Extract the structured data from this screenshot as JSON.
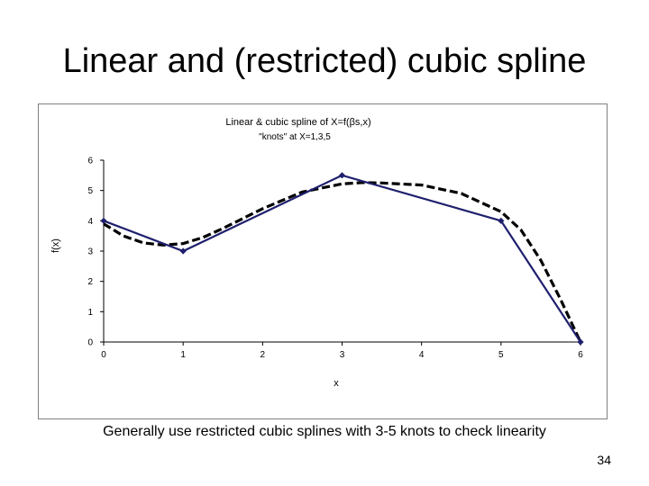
{
  "slide": {
    "title": "Linear and (restricted) cubic spline",
    "footnote": "Generally use restricted cubic splines with 3-5 knots to check linearity",
    "page_number": "34"
  },
  "chart_data": {
    "type": "line",
    "title": "Linear & cubic spline of X=f(βs,x)",
    "subtitle": "\"knots\" at X=1,3,5",
    "xlabel": "x",
    "ylabel": "f(x)",
    "xlim": [
      0,
      6
    ],
    "ylim": [
      0,
      6
    ],
    "xticks": [
      0,
      1,
      2,
      3,
      4,
      5,
      6
    ],
    "yticks": [
      0,
      1,
      2,
      3,
      4,
      5,
      6
    ],
    "grid": false,
    "series": [
      {
        "style": "solid-with-markers",
        "color": "#1f1f6e",
        "x": [
          0,
          1,
          3,
          5,
          6
        ],
        "y": [
          4.0,
          3.0,
          5.5,
          4.0,
          0.0
        ]
      },
      {
        "style": "dashed",
        "color": "#000000",
        "x": [
          0,
          0.25,
          0.5,
          0.75,
          1.0,
          1.25,
          1.5,
          2.0,
          2.5,
          3.0,
          3.25,
          3.5,
          4.0,
          4.5,
          5.0,
          5.25,
          5.5,
          5.75,
          6.0
        ],
        "y": [
          3.9,
          3.5,
          3.27,
          3.2,
          3.25,
          3.45,
          3.75,
          4.4,
          4.95,
          5.22,
          5.26,
          5.25,
          5.18,
          4.9,
          4.3,
          3.7,
          2.7,
          1.4,
          0.0
        ]
      }
    ]
  }
}
